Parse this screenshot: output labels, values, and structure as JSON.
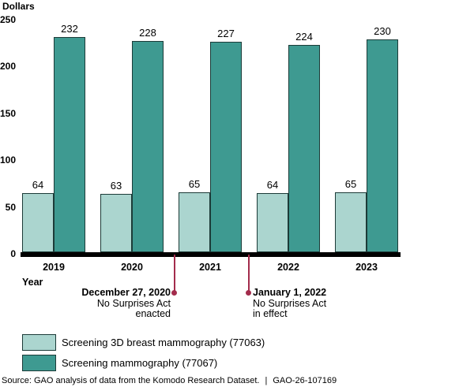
{
  "chart_data": {
    "type": "bar",
    "title": "",
    "ylabel": "Dollars",
    "xlabel": "Year",
    "categories": [
      "2019",
      "2020",
      "2021",
      "2022",
      "2023"
    ],
    "series": [
      {
        "name": "Screening 3D breast mammography (77063)",
        "values": [
          64,
          63,
          65,
          64,
          65
        ],
        "color": "#abd5cf"
      },
      {
        "name": "Screening mammography (77067)",
        "values": [
          232,
          228,
          227,
          224,
          230
        ],
        "color": "#3e9a91"
      }
    ],
    "yticks": [
      0,
      50,
      100,
      150,
      200,
      250
    ],
    "ylim": [
      0,
      250
    ],
    "grid": false,
    "legend_position": "bottom-left",
    "bar_labels": true
  },
  "annotations": [
    {
      "date": "December 27, 2020",
      "line1": "No Surprises Act",
      "line2": "enacted",
      "align": "right"
    },
    {
      "date": "January 1, 2022",
      "line1": "No Surprises Act",
      "line2": "in effect",
      "align": "left"
    }
  ],
  "colors": {
    "annotation_red": "#a32c4c",
    "axis_black": "#000000",
    "bar_border": "#1c3b38"
  },
  "footer": {
    "source": "Source: GAO analysis of data from the Komodo Research Dataset.",
    "separator": "|",
    "report_id": "GAO-26-107169"
  }
}
